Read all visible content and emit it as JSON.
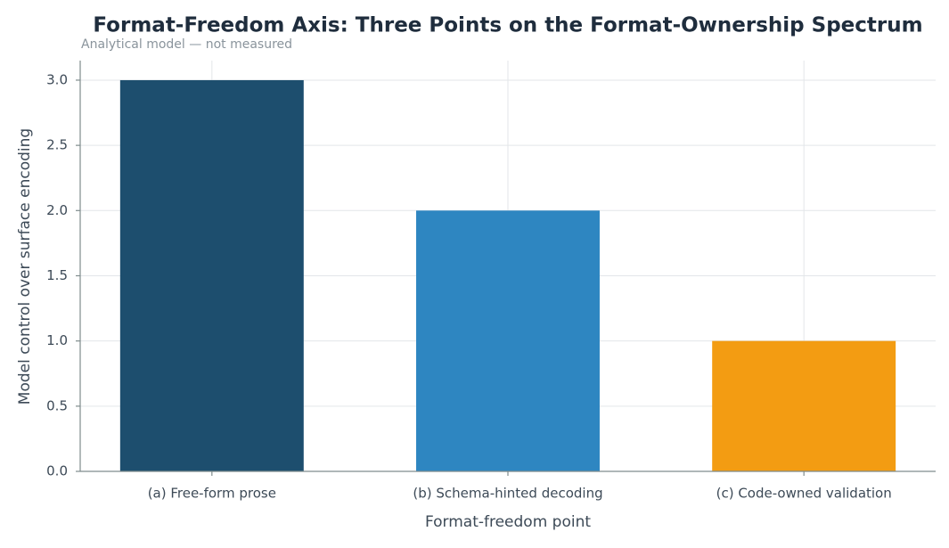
{
  "chart_data": {
    "type": "bar",
    "title": "Format-Freedom Axis: Three Points on the Format-Ownership Spectrum",
    "subtitle": "Analytical model — not measured",
    "x_label": "Format-freedom point",
    "y_label": "Model control over surface encoding",
    "categories": [
      "(a) Free-form prose",
      "(b) Schema-hinted decoding",
      "(c) Code-owned validation"
    ],
    "values": [
      3,
      2,
      1
    ],
    "colors": [
      "#1d4e6e",
      "#2e86c1",
      "#f39c12"
    ],
    "ylim": [
      0,
      3.15
    ],
    "yticks": [
      {
        "value": 0,
        "label": "0.0"
      },
      0.5,
      {
        "value": 1,
        "label": "1.0"
      },
      1.5,
      {
        "value": 2,
        "label": "2.0"
      },
      2.5,
      {
        "value": 3,
        "label": "3.0"
      }
    ],
    "grid": true
  }
}
